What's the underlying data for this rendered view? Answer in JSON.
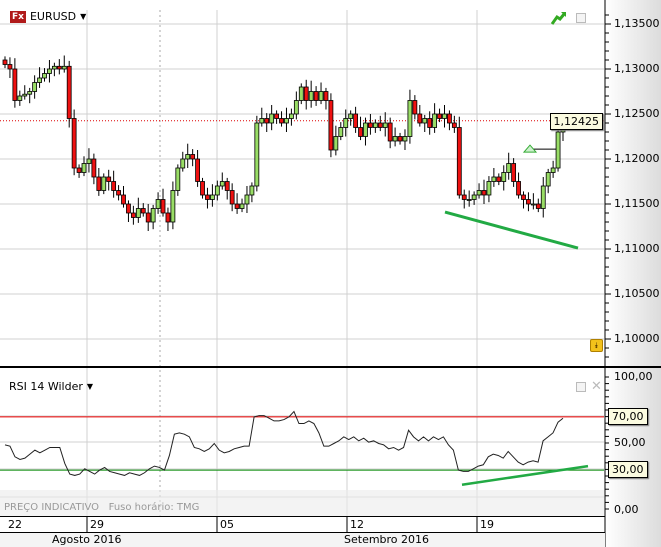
{
  "symbol": {
    "icon": "fx-icon",
    "icon_text": "Fx",
    "name": "EURUSD"
  },
  "indicator": {
    "name": "RSI 14 Wilder"
  },
  "footer": {
    "price_note": "PREÇO INDICATIVO",
    "timezone": "Fuso horário: TMG"
  },
  "price_axis": {
    "ticks": [
      "1,13500",
      "1,13000",
      "1,12500",
      "1,12000",
      "1,11500",
      "1,11000",
      "1,10500",
      "1,10000"
    ],
    "current": "1,12425"
  },
  "rsi_axis": {
    "ticks": [
      "100,00",
      "50,00",
      "0,00"
    ],
    "overbought": "70,00",
    "oversold": "30,00"
  },
  "dates": [
    "22",
    "29",
    "05",
    "12",
    "19"
  ],
  "months": [
    "Agosto 2016",
    "Setembro 2016"
  ],
  "colors": {
    "up": "#99dd66",
    "down": "#ee1111",
    "trendline": "#22aa44",
    "overbought": "#ee0000",
    "oversold": "#008800",
    "rsi": "#222222"
  },
  "chart_data": {
    "type": "candlestick",
    "price_ylim": [
      1.0975,
      1.1375
    ],
    "closes": [
      1.1305,
      1.13,
      1.1265,
      1.127,
      1.1272,
      1.1275,
      1.1285,
      1.129,
      1.1295,
      1.13,
      1.1303,
      1.13,
      1.1303,
      1.1245,
      1.119,
      1.1185,
      1.1195,
      1.12,
      1.118,
      1.1165,
      1.118,
      1.1175,
      1.1165,
      1.116,
      1.115,
      1.114,
      1.1135,
      1.1145,
      1.114,
      1.113,
      1.1145,
      1.1155,
      1.114,
      1.113,
      1.1165,
      1.119,
      1.12,
      1.1205,
      1.12,
      1.1175,
      1.116,
      1.1155,
      1.116,
      1.117,
      1.1175,
      1.1165,
      1.115,
      1.1145,
      1.115,
      1.116,
      1.117,
      1.124,
      1.1245,
      1.124,
      1.125,
      1.1245,
      1.124,
      1.1245,
      1.125,
      1.1265,
      1.128,
      1.1265,
      1.1275,
      1.1265,
      1.1275,
      1.1265,
      1.121,
      1.1225,
      1.1235,
      1.1245,
      1.125,
      1.1235,
      1.1225,
      1.124,
      1.1235,
      1.124,
      1.1235,
      1.124,
      1.122,
      1.1225,
      1.122,
      1.1225,
      1.1265,
      1.125,
      1.124,
      1.1245,
      1.1235,
      1.125,
      1.1245,
      1.125,
      1.124,
      1.1235,
      1.116,
      1.1155,
      1.1155,
      1.116,
      1.1165,
      1.116,
      1.1175,
      1.118,
      1.1175,
      1.1185,
      1.1195,
      1.1175,
      1.116,
      1.1155,
      1.115,
      1.115,
      1.1145,
      1.117,
      1.1185,
      1.119,
      1.123,
      1.12425
    ],
    "current_price": 1.12425,
    "price_trendline": [
      1.1141,
      1.1101
    ],
    "alert_level": 1.1211,
    "rsi_ylim": [
      -10,
      100
    ],
    "rsi": [
      49,
      48,
      40,
      38,
      39,
      42,
      45,
      43,
      45,
      47,
      47,
      47,
      35,
      27,
      26,
      27,
      31,
      29,
      27,
      30,
      32,
      29,
      28,
      27,
      26,
      28,
      27,
      26,
      28,
      31,
      33,
      32,
      30,
      41,
      57,
      58,
      57,
      55,
      47,
      46,
      44,
      46,
      50,
      45,
      43,
      44,
      46,
      47,
      48,
      48,
      70,
      71,
      71,
      69,
      67,
      67,
      68,
      70,
      74,
      65,
      65,
      67,
      65,
      58,
      48,
      48,
      50,
      52,
      55,
      53,
      55,
      52,
      54,
      51,
      52,
      50,
      49,
      46,
      47,
      45,
      47,
      60,
      55,
      52,
      55,
      52,
      55,
      53,
      55,
      49,
      45,
      30,
      29,
      29,
      31,
      33,
      34,
      40,
      42,
      41,
      39,
      44,
      40,
      36,
      34,
      36,
      37,
      36,
      52,
      55,
      58,
      66,
      69
    ],
    "rsi_levels": [
      70,
      30
    ],
    "rsi_trendline": [
      19,
      33
    ]
  }
}
